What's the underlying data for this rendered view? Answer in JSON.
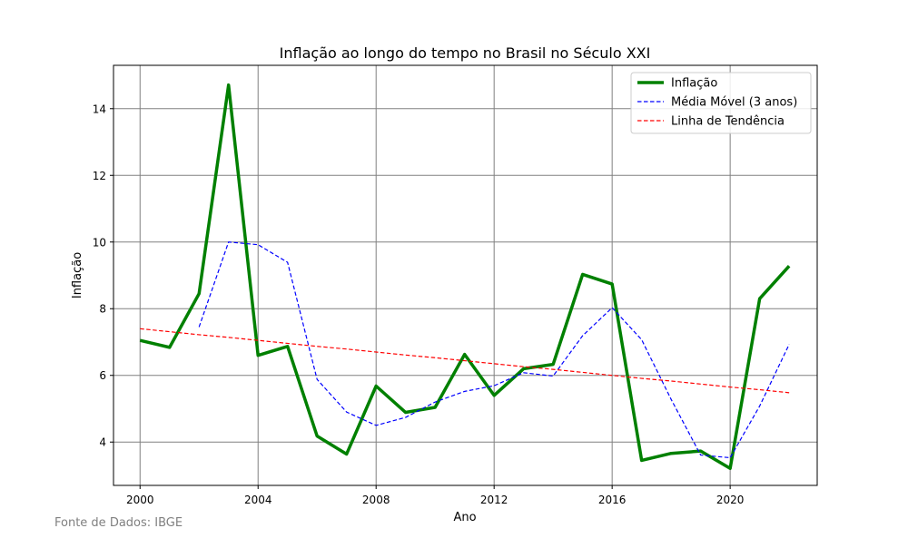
{
  "chart_data": {
    "type": "line",
    "title": "Inflação ao longo do tempo no Brasil no Século XXI",
    "xlabel": "Ano",
    "ylabel": "Inflação",
    "xlim": [
      1999.1,
      2022.95
    ],
    "ylim": [
      2.7,
      15.3
    ],
    "x_ticks": [
      2000,
      2004,
      2008,
      2012,
      2016,
      2020
    ],
    "x_tick_labels": [
      "2000",
      "2004",
      "2008",
      "2012",
      "2016",
      "2020"
    ],
    "y_ticks": [
      4,
      6,
      8,
      10,
      12,
      14
    ],
    "y_tick_labels": [
      "4",
      "6",
      "8",
      "10",
      "12",
      "14"
    ],
    "grid": true,
    "legend_position": "top-right",
    "x": [
      2000,
      2001,
      2002,
      2003,
      2004,
      2005,
      2006,
      2007,
      2008,
      2009,
      2010,
      2011,
      2012,
      2013,
      2014,
      2015,
      2016,
      2017,
      2018,
      2019,
      2020,
      2021,
      2022
    ],
    "series": [
      {
        "name": "Inflação",
        "style": "solid",
        "color": "#008000",
        "values": [
          7.05,
          6.84,
          8.45,
          14.71,
          6.6,
          6.87,
          4.18,
          3.64,
          5.68,
          4.89,
          5.04,
          6.63,
          5.4,
          6.2,
          6.33,
          9.03,
          8.74,
          3.45,
          3.66,
          3.73,
          3.21,
          8.3,
          9.28
        ]
      },
      {
        "name": "Média Móvel (3 anos)",
        "style": "dashed",
        "color": "#0000ff",
        "values": [
          null,
          null,
          7.45,
          10.0,
          9.92,
          9.39,
          5.88,
          4.9,
          4.5,
          4.74,
          5.2,
          5.52,
          5.69,
          6.08,
          5.98,
          7.19,
          8.03,
          7.07,
          5.28,
          3.61,
          3.53,
          5.08,
          6.93
        ]
      },
      {
        "name": "Linha de Tendência",
        "style": "dashed",
        "color": "#ff0000",
        "values": [
          7.4,
          7.31,
          7.22,
          7.14,
          7.05,
          6.96,
          6.87,
          6.79,
          6.7,
          6.61,
          6.53,
          6.44,
          6.35,
          6.26,
          6.18,
          6.09,
          6.0,
          5.91,
          5.83,
          5.74,
          5.65,
          5.57,
          5.48
        ]
      }
    ]
  },
  "footer": {
    "source": "Fonte de Dados: IBGE"
  },
  "colors": {
    "grid": "#808080",
    "axes": "#000000",
    "legend_border": "#cccccc"
  }
}
